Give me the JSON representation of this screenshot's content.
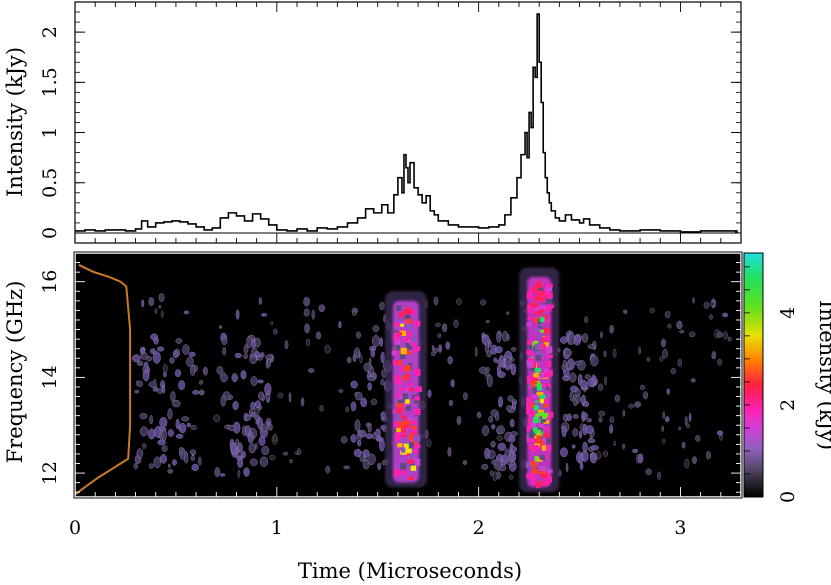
{
  "chart_data": [
    {
      "type": "line",
      "panel": "top",
      "title": "",
      "xlabel": "",
      "ylabel": "Intensity (kJy)",
      "xlim": [
        0,
        3.3
      ],
      "ylim": [
        -0.1,
        2.3
      ],
      "y_ticks": [
        0,
        0.5,
        1,
        1.5,
        2
      ],
      "y_tick_labels": [
        "0",
        "0.5",
        "1",
        "1.5",
        "2"
      ],
      "step": true,
      "series": [
        {
          "x": [
            0.0,
            0.05,
            0.1,
            0.15,
            0.2,
            0.25,
            0.3,
            0.33,
            0.36,
            0.4,
            0.44,
            0.48,
            0.52,
            0.56,
            0.6,
            0.64,
            0.68,
            0.72,
            0.76,
            0.8,
            0.84,
            0.88,
            0.92,
            0.96,
            1.0,
            1.05,
            1.1,
            1.15,
            1.2,
            1.25,
            1.3,
            1.35,
            1.4,
            1.44,
            1.48,
            1.52,
            1.55,
            1.58,
            1.6,
            1.62,
            1.63,
            1.64,
            1.65,
            1.66,
            1.68,
            1.7,
            1.72,
            1.74,
            1.76,
            1.78,
            1.8,
            1.85,
            1.9,
            1.95,
            2.0,
            2.05,
            2.1,
            2.13,
            2.16,
            2.19,
            2.21,
            2.23,
            2.24,
            2.25,
            2.26,
            2.27,
            2.28,
            2.29,
            2.3,
            2.31,
            2.32,
            2.33,
            2.34,
            2.35,
            2.36,
            2.38,
            2.4,
            2.43,
            2.46,
            2.5,
            2.52,
            2.55,
            2.6,
            2.65,
            2.7,
            2.8,
            2.9,
            3.0,
            3.1,
            3.2,
            3.28
          ],
          "y": [
            0.02,
            0.03,
            0.02,
            0.03,
            0.03,
            0.02,
            0.04,
            0.12,
            0.06,
            0.1,
            0.11,
            0.12,
            0.11,
            0.09,
            0.06,
            0.03,
            0.05,
            0.15,
            0.2,
            0.17,
            0.12,
            0.19,
            0.14,
            0.08,
            0.03,
            0.02,
            0.04,
            0.02,
            0.05,
            0.04,
            0.06,
            0.1,
            0.15,
            0.24,
            0.2,
            0.28,
            0.2,
            0.38,
            0.55,
            0.4,
            0.78,
            0.65,
            0.5,
            0.7,
            0.45,
            0.38,
            0.3,
            0.37,
            0.22,
            0.18,
            0.12,
            0.08,
            0.06,
            0.06,
            0.05,
            0.06,
            0.08,
            0.18,
            0.35,
            0.55,
            0.78,
            1.0,
            0.75,
            1.2,
            1.05,
            1.65,
            1.55,
            2.18,
            1.7,
            1.3,
            0.8,
            0.55,
            0.4,
            0.3,
            0.22,
            0.15,
            0.12,
            0.18,
            0.13,
            0.1,
            0.14,
            0.08,
            0.05,
            0.03,
            0.02,
            0.03,
            0.02,
            0.01,
            0.02,
            0.02,
            0.01
          ]
        }
      ]
    },
    {
      "type": "heatmap",
      "panel": "bottom",
      "title": "",
      "xlabel": "Time (Microseconds)",
      "ylabel": "Frequency (GHz)",
      "xlim": [
        0,
        3.3
      ],
      "ylim": [
        11.5,
        16.6
      ],
      "x_ticks": [
        0,
        1,
        2,
        3
      ],
      "x_tick_labels": [
        "0",
        "1",
        "2",
        "3"
      ],
      "y_ticks": [
        12,
        14,
        16
      ],
      "y_tick_labels": [
        "12",
        "14",
        "16"
      ],
      "colorbar": {
        "label": "Intensity (kJy)",
        "range": [
          0,
          5.3
        ],
        "ticks": [
          0,
          2,
          4
        ],
        "tick_labels": [
          "0",
          "2",
          "4"
        ]
      },
      "bursts": [
        {
          "t": 1.64,
          "f_min": 11.7,
          "f_max": 15.8,
          "peak": 2.5
        },
        {
          "t": 2.3,
          "f_min": 11.6,
          "f_max": 16.3,
          "peak": 4.8
        }
      ],
      "bandpass_overlay": {
        "color": "#c87a2a",
        "freq": [
          11.55,
          11.7,
          11.9,
          12.1,
          12.2,
          12.3,
          13.0,
          14.0,
          15.0,
          15.9,
          16.0,
          16.1,
          16.2,
          16.35
        ],
        "level": [
          0.0,
          0.05,
          0.12,
          0.2,
          0.24,
          0.28,
          0.29,
          0.29,
          0.29,
          0.27,
          0.24,
          0.18,
          0.1,
          0.02
        ]
      }
    }
  ]
}
